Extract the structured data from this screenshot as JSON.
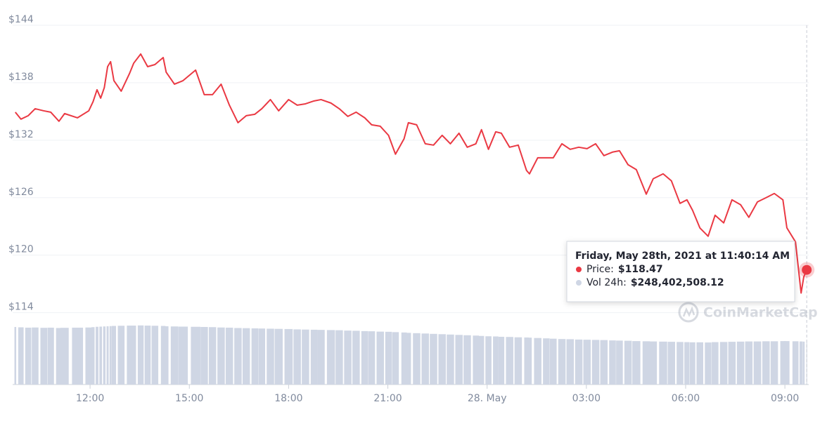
{
  "chart_data": {
    "type": "line",
    "x": [
      9.74,
      9.91,
      10.13,
      10.34,
      10.6,
      10.81,
      11.06,
      11.23,
      11.62,
      11.96,
      12.09,
      12.21,
      12.32,
      12.43,
      12.53,
      12.62,
      12.72,
      12.94,
      13.19,
      13.32,
      13.53,
      13.74,
      13.96,
      14.21,
      14.3,
      14.55,
      14.81,
      15.19,
      15.45,
      15.7,
      15.96,
      16.21,
      16.47,
      16.72,
      16.98,
      17.19,
      17.45,
      17.7,
      18.0,
      18.26,
      18.51,
      18.77,
      18.98,
      19.28,
      19.53,
      19.79,
      20.04,
      20.3,
      20.51,
      20.77,
      21.02,
      21.23,
      21.49,
      21.62,
      21.87,
      22.13,
      22.38,
      22.64,
      22.89,
      23.15,
      23.4,
      23.66,
      23.83,
      24.04,
      24.26,
      24.43,
      24.68,
      24.94,
      25.19,
      25.28,
      25.53,
      25.79,
      26.0,
      26.26,
      26.51,
      26.77,
      27.02,
      27.28,
      27.53,
      27.79,
      28.0,
      28.26,
      28.51,
      28.81,
      29.02,
      29.32,
      29.57,
      29.83,
      30.04,
      30.21,
      30.43,
      30.68,
      30.89,
      31.15,
      31.4,
      31.66,
      31.91,
      32.17,
      32.43,
      32.68,
      32.94,
      33.06,
      33.32,
      33.49,
      33.57,
      33.66
    ],
    "xlim": [
      9.66,
      33.72
    ],
    "xticks": [
      {
        "value": 12,
        "label": "12:00"
      },
      {
        "value": 15,
        "label": "15:00"
      },
      {
        "value": 18,
        "label": "18:00"
      },
      {
        "value": 21,
        "label": "21:00"
      },
      {
        "value": 24,
        "label": "28. May"
      },
      {
        "value": 27,
        "label": "03:00"
      },
      {
        "value": 30,
        "label": "06:00"
      },
      {
        "value": 33,
        "label": "09:00"
      }
    ],
    "ylim": [
      106.5,
      144
    ],
    "yticks": [
      {
        "value": 114,
        "label": "$114"
      },
      {
        "value": 120,
        "label": "$120"
      },
      {
        "value": 126,
        "label": "$126"
      },
      {
        "value": 132,
        "label": "$132"
      },
      {
        "value": 138,
        "label": "$138"
      },
      {
        "value": 144,
        "label": "$144"
      }
    ],
    "y2lim": [
      0,
      2085000000
    ],
    "grid": true,
    "series": [
      {
        "name": "Price:",
        "color": "#ea3943",
        "values": [
          134.93,
          134.2,
          134.56,
          135.29,
          135.07,
          134.93,
          133.98,
          134.78,
          134.34,
          135.07,
          136.02,
          137.27,
          136.39,
          137.49,
          139.68,
          140.2,
          138.22,
          137.12,
          138.95,
          140.05,
          141.0,
          139.68,
          139.9,
          140.63,
          139.1,
          137.85,
          138.22,
          139.32,
          136.76,
          136.76,
          137.85,
          135.66,
          133.83,
          134.56,
          134.71,
          135.29,
          136.24,
          135.07,
          136.24,
          135.66,
          135.8,
          136.1,
          136.24,
          135.88,
          135.29,
          134.49,
          134.93,
          134.34,
          133.61,
          133.46,
          132.51,
          130.54,
          132.15,
          133.83,
          133.61,
          131.63,
          131.49,
          132.51,
          131.63,
          132.73,
          131.27,
          131.63,
          133.1,
          131.05,
          132.88,
          132.73,
          131.27,
          131.49,
          128.85,
          128.49,
          130.17,
          130.17,
          130.17,
          131.63,
          131.05,
          131.27,
          131.12,
          131.63,
          130.39,
          130.76,
          130.9,
          129.44,
          128.93,
          126.37,
          127.98,
          128.49,
          127.76,
          125.41,
          125.78,
          124.68,
          122.85,
          121.98,
          124.17,
          123.37,
          125.78,
          125.27,
          123.95,
          125.56,
          126.0,
          126.44,
          125.78,
          122.85,
          121.39,
          116.05,
          117.73,
          118.47
        ]
      },
      {
        "name": "Vol 24h:",
        "color": "#cfd6e4",
        "type": "bar",
        "axis": "y2",
        "values": [
          334000000,
          332000000,
          330000000,
          331000000,
          329000000,
          330000000,
          328000000,
          329000000,
          330000000,
          331000000,
          333000000,
          335000000,
          336000000,
          337000000,
          338000000,
          339000000,
          340000000,
          341000000,
          342000000,
          342000000,
          343000000,
          342000000,
          341000000,
          340000000,
          338000000,
          337000000,
          336000000,
          335000000,
          334000000,
          333000000,
          331000000,
          330000000,
          328000000,
          327000000,
          326000000,
          325000000,
          324000000,
          323000000,
          322000000,
          320000000,
          319000000,
          318000000,
          317000000,
          316000000,
          315000000,
          313000000,
          312000000,
          310000000,
          309000000,
          307000000,
          306000000,
          304000000,
          302000000,
          300000000,
          298000000,
          296000000,
          294000000,
          292000000,
          290000000,
          288000000,
          286000000,
          284000000,
          282000000,
          280000000,
          279000000,
          277000000,
          276000000,
          274000000,
          273000000,
          272000000,
          270000000,
          268000000,
          266000000,
          264000000,
          263000000,
          261000000,
          260000000,
          259000000,
          258000000,
          256000000,
          255000000,
          254000000,
          252000000,
          251000000,
          250000000,
          249000000,
          248000000,
          247000000,
          246000000,
          245000000,
          245000000,
          244000000,
          246000000,
          247000000,
          248000000,
          249000000,
          250000000,
          250000000,
          251000000,
          251000000,
          252000000,
          252000000,
          251000000,
          250000000,
          249000000,
          248402508.12
        ]
      }
    ],
    "tooltip": {
      "title": "Friday, May 28th, 2021 at 11:40:14 AM",
      "values": [
        "$118.47",
        "$248,402,508.12"
      ]
    },
    "watermark": "CoinMarketCap"
  }
}
